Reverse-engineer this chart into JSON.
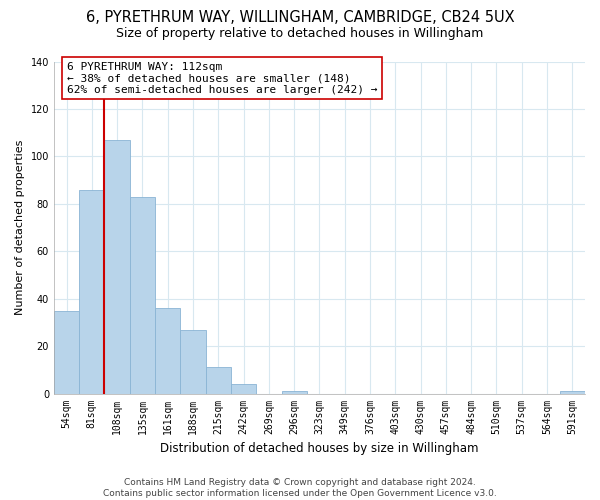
{
  "title": "6, PYRETHRUM WAY, WILLINGHAM, CAMBRIDGE, CB24 5UX",
  "subtitle": "Size of property relative to detached houses in Willingham",
  "xlabel": "Distribution of detached houses by size in Willingham",
  "ylabel": "Number of detached properties",
  "bar_labels": [
    "54sqm",
    "81sqm",
    "108sqm",
    "135sqm",
    "161sqm",
    "188sqm",
    "215sqm",
    "242sqm",
    "269sqm",
    "296sqm",
    "323sqm",
    "349sqm",
    "376sqm",
    "403sqm",
    "430sqm",
    "457sqm",
    "484sqm",
    "510sqm",
    "537sqm",
    "564sqm",
    "591sqm"
  ],
  "bar_values": [
    35,
    86,
    107,
    83,
    36,
    27,
    11,
    4,
    0,
    1,
    0,
    0,
    0,
    0,
    0,
    0,
    0,
    0,
    0,
    0,
    1
  ],
  "bar_color": "#b8d4ea",
  "bar_edge_color": "#8ab4d4",
  "vline_color": "#cc0000",
  "annotation_line1": "6 PYRETHRUM WAY: 112sqm",
  "annotation_line2": "← 38% of detached houses are smaller (148)",
  "annotation_line3": "62% of semi-detached houses are larger (242) →",
  "annotation_box_color": "#ffffff",
  "annotation_border_color": "#cc0000",
  "ylim": [
    0,
    140
  ],
  "yticks": [
    0,
    20,
    40,
    60,
    80,
    100,
    120,
    140
  ],
  "footnote": "Contains HM Land Registry data © Crown copyright and database right 2024.\nContains public sector information licensed under the Open Government Licence v3.0.",
  "background_color": "#ffffff",
  "grid_color": "#d8e8f0",
  "title_fontsize": 10.5,
  "subtitle_fontsize": 9,
  "xlabel_fontsize": 8.5,
  "ylabel_fontsize": 8,
  "tick_fontsize": 7,
  "annotation_fontsize": 8,
  "footnote_fontsize": 6.5
}
